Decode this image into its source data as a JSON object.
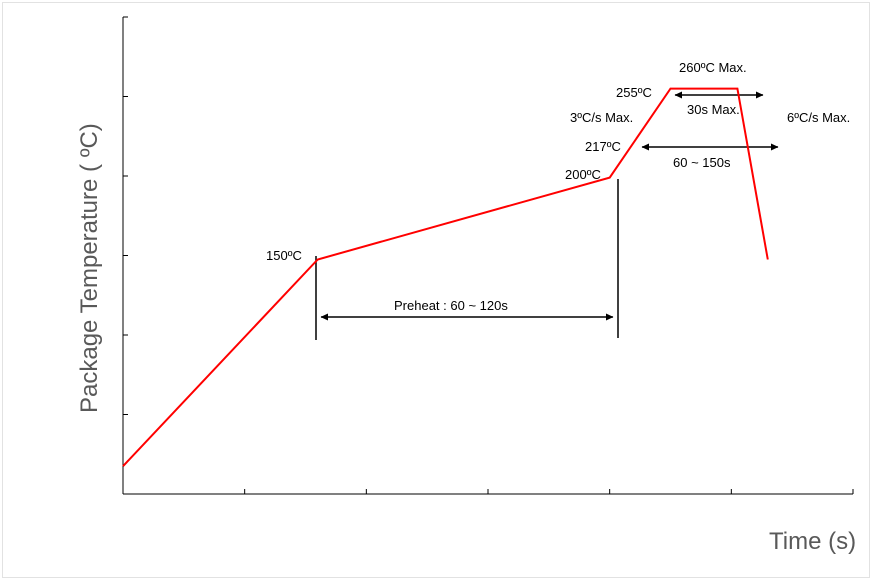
{
  "chart_data": {
    "type": "line",
    "xlabel": "Time (s)",
    "ylabel": "Package Temperature ( ºC)",
    "xlim": [
      0,
      6
    ],
    "ylim": [
      0,
      6
    ],
    "grid": false,
    "colors": {
      "profile": "#ff0000",
      "axis": "#000000",
      "dimension": "#000000",
      "axis_title": "#595959"
    },
    "series": [
      {
        "x": [
          0,
          1.6,
          4.0,
          4.5,
          5.05,
          5.3
        ],
        "y": [
          0.35,
          2.95,
          3.98,
          5.1,
          5.1,
          2.95
        ]
      }
    ],
    "annotations": {
      "t150": "150ºC",
      "t200": "200ºC",
      "t217": "217ºC",
      "t255": "255ºC",
      "t260": "260ºC Max.",
      "ramp_up": "3ºC/s Max.",
      "ramp_down": "6ºC/s Max.",
      "preheat": "Preheat : 60 ~ 120s",
      "above217": "60 ~ 150s",
      "peak": "30s Max."
    }
  }
}
